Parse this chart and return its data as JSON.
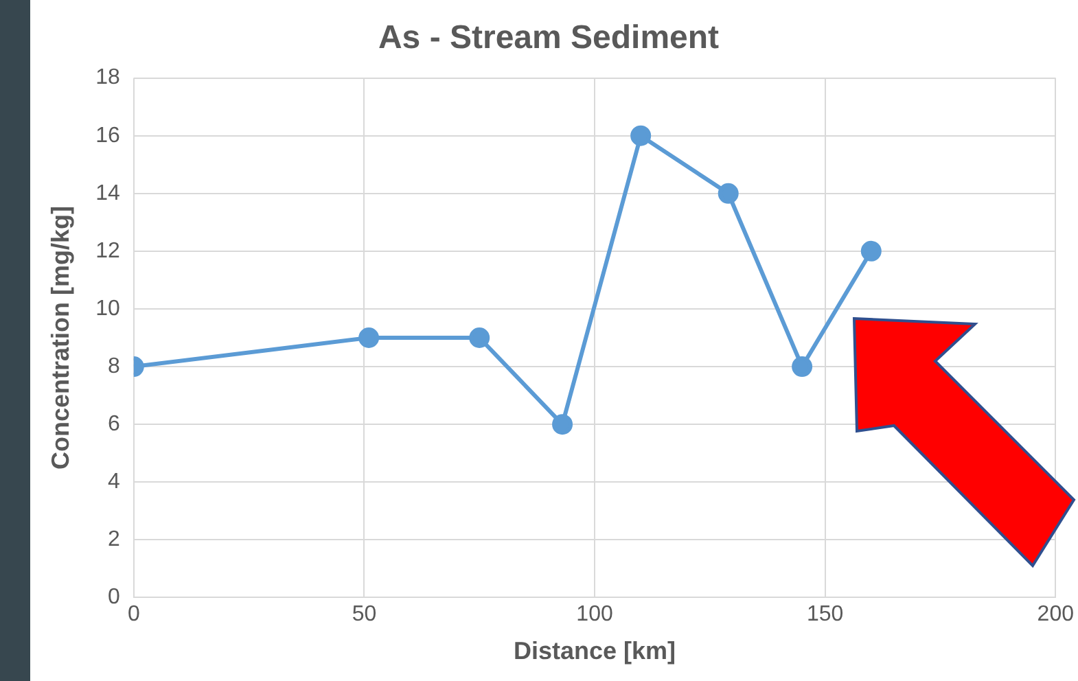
{
  "chart_data": {
    "type": "line",
    "title": "As - Stream Sediment",
    "xlabel": "Distance [km]",
    "ylabel": "Concentration [mg/kg]",
    "x": [
      0,
      51,
      75,
      93,
      110,
      129,
      145,
      160
    ],
    "series": [
      {
        "color": "#5b9bd5",
        "values": [
          8,
          9,
          9,
          6,
          16,
          14,
          8,
          12
        ]
      }
    ],
    "xlim": [
      0,
      200
    ],
    "xticks": [
      0,
      50,
      100,
      150,
      200
    ],
    "ylim": [
      0,
      18
    ],
    "yticks": [
      0,
      2,
      4,
      6,
      8,
      10,
      12,
      14,
      16,
      18
    ],
    "grid": true,
    "legend": false,
    "marker": "circle",
    "line_style": "solid"
  }
}
